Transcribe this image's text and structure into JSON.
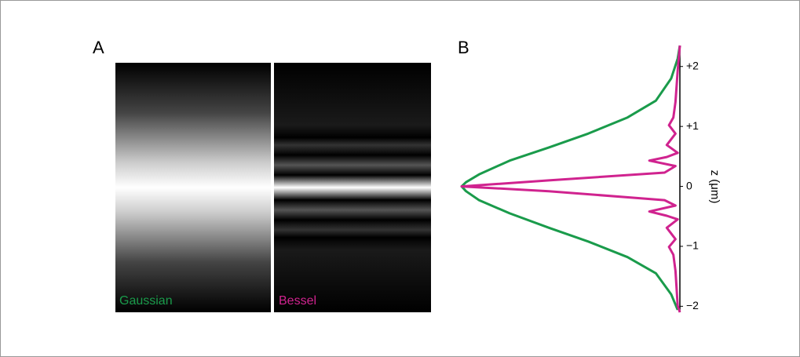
{
  "panel_a": {
    "label": "A",
    "images": [
      {
        "label": "Gaussian",
        "color": "#1a9b4b"
      },
      {
        "label": "Bessel",
        "color": "#d0238f"
      }
    ]
  },
  "chart_data": {
    "type": "line",
    "panel_label": "B",
    "y_label": "z (μm)",
    "ylim": [
      -2.1,
      2.35
    ],
    "xlim": [
      0,
      1
    ],
    "yticks": [
      {
        "value": 2,
        "label": "+2"
      },
      {
        "value": 1,
        "label": "+1"
      },
      0,
      {
        "value": -1,
        "label": "−1"
      },
      {
        "value": -2,
        "label": "−2"
      }
    ],
    "series": [
      {
        "color": "#1a9b4b",
        "z": [
          2.35,
          2.13,
          1.8,
          1.43,
          1.15,
          0.88,
          0.65,
          0.43,
          0.2,
          0.07,
          0,
          -0.08,
          -0.23,
          -0.45,
          -0.69,
          -0.92,
          -1.18,
          -1.45,
          -1.8,
          -2.06
        ],
        "values": [
          0,
          0.01,
          0.04,
          0.11,
          0.24,
          0.42,
          0.6,
          0.78,
          0.92,
          0.98,
          1,
          0.98,
          0.92,
          0.78,
          0.6,
          0.42,
          0.24,
          0.11,
          0.04,
          0.01
        ]
      },
      {
        "color": "#d0238f",
        "z": [
          2.35,
          1.93,
          1.41,
          1.15,
          1.02,
          0.88,
          0.69,
          0.56,
          0.49,
          0.43,
          0.34,
          0.23,
          0.1,
          0,
          -0.08,
          -0.23,
          -0.32,
          -0.42,
          -0.49,
          -0.55,
          -0.69,
          -0.88,
          -1.01,
          -1.14,
          -1.41,
          -1.99,
          -2.1
        ],
        "values": [
          0,
          0.01,
          0.02,
          0.03,
          0.05,
          0.02,
          0.06,
          0.01,
          0.06,
          0.14,
          0.02,
          0.07,
          0.6,
          1,
          0.6,
          0.07,
          0.02,
          0.14,
          0.06,
          0.01,
          0.06,
          0.02,
          0.05,
          0.03,
          0.02,
          0.01,
          0
        ]
      }
    ]
  }
}
